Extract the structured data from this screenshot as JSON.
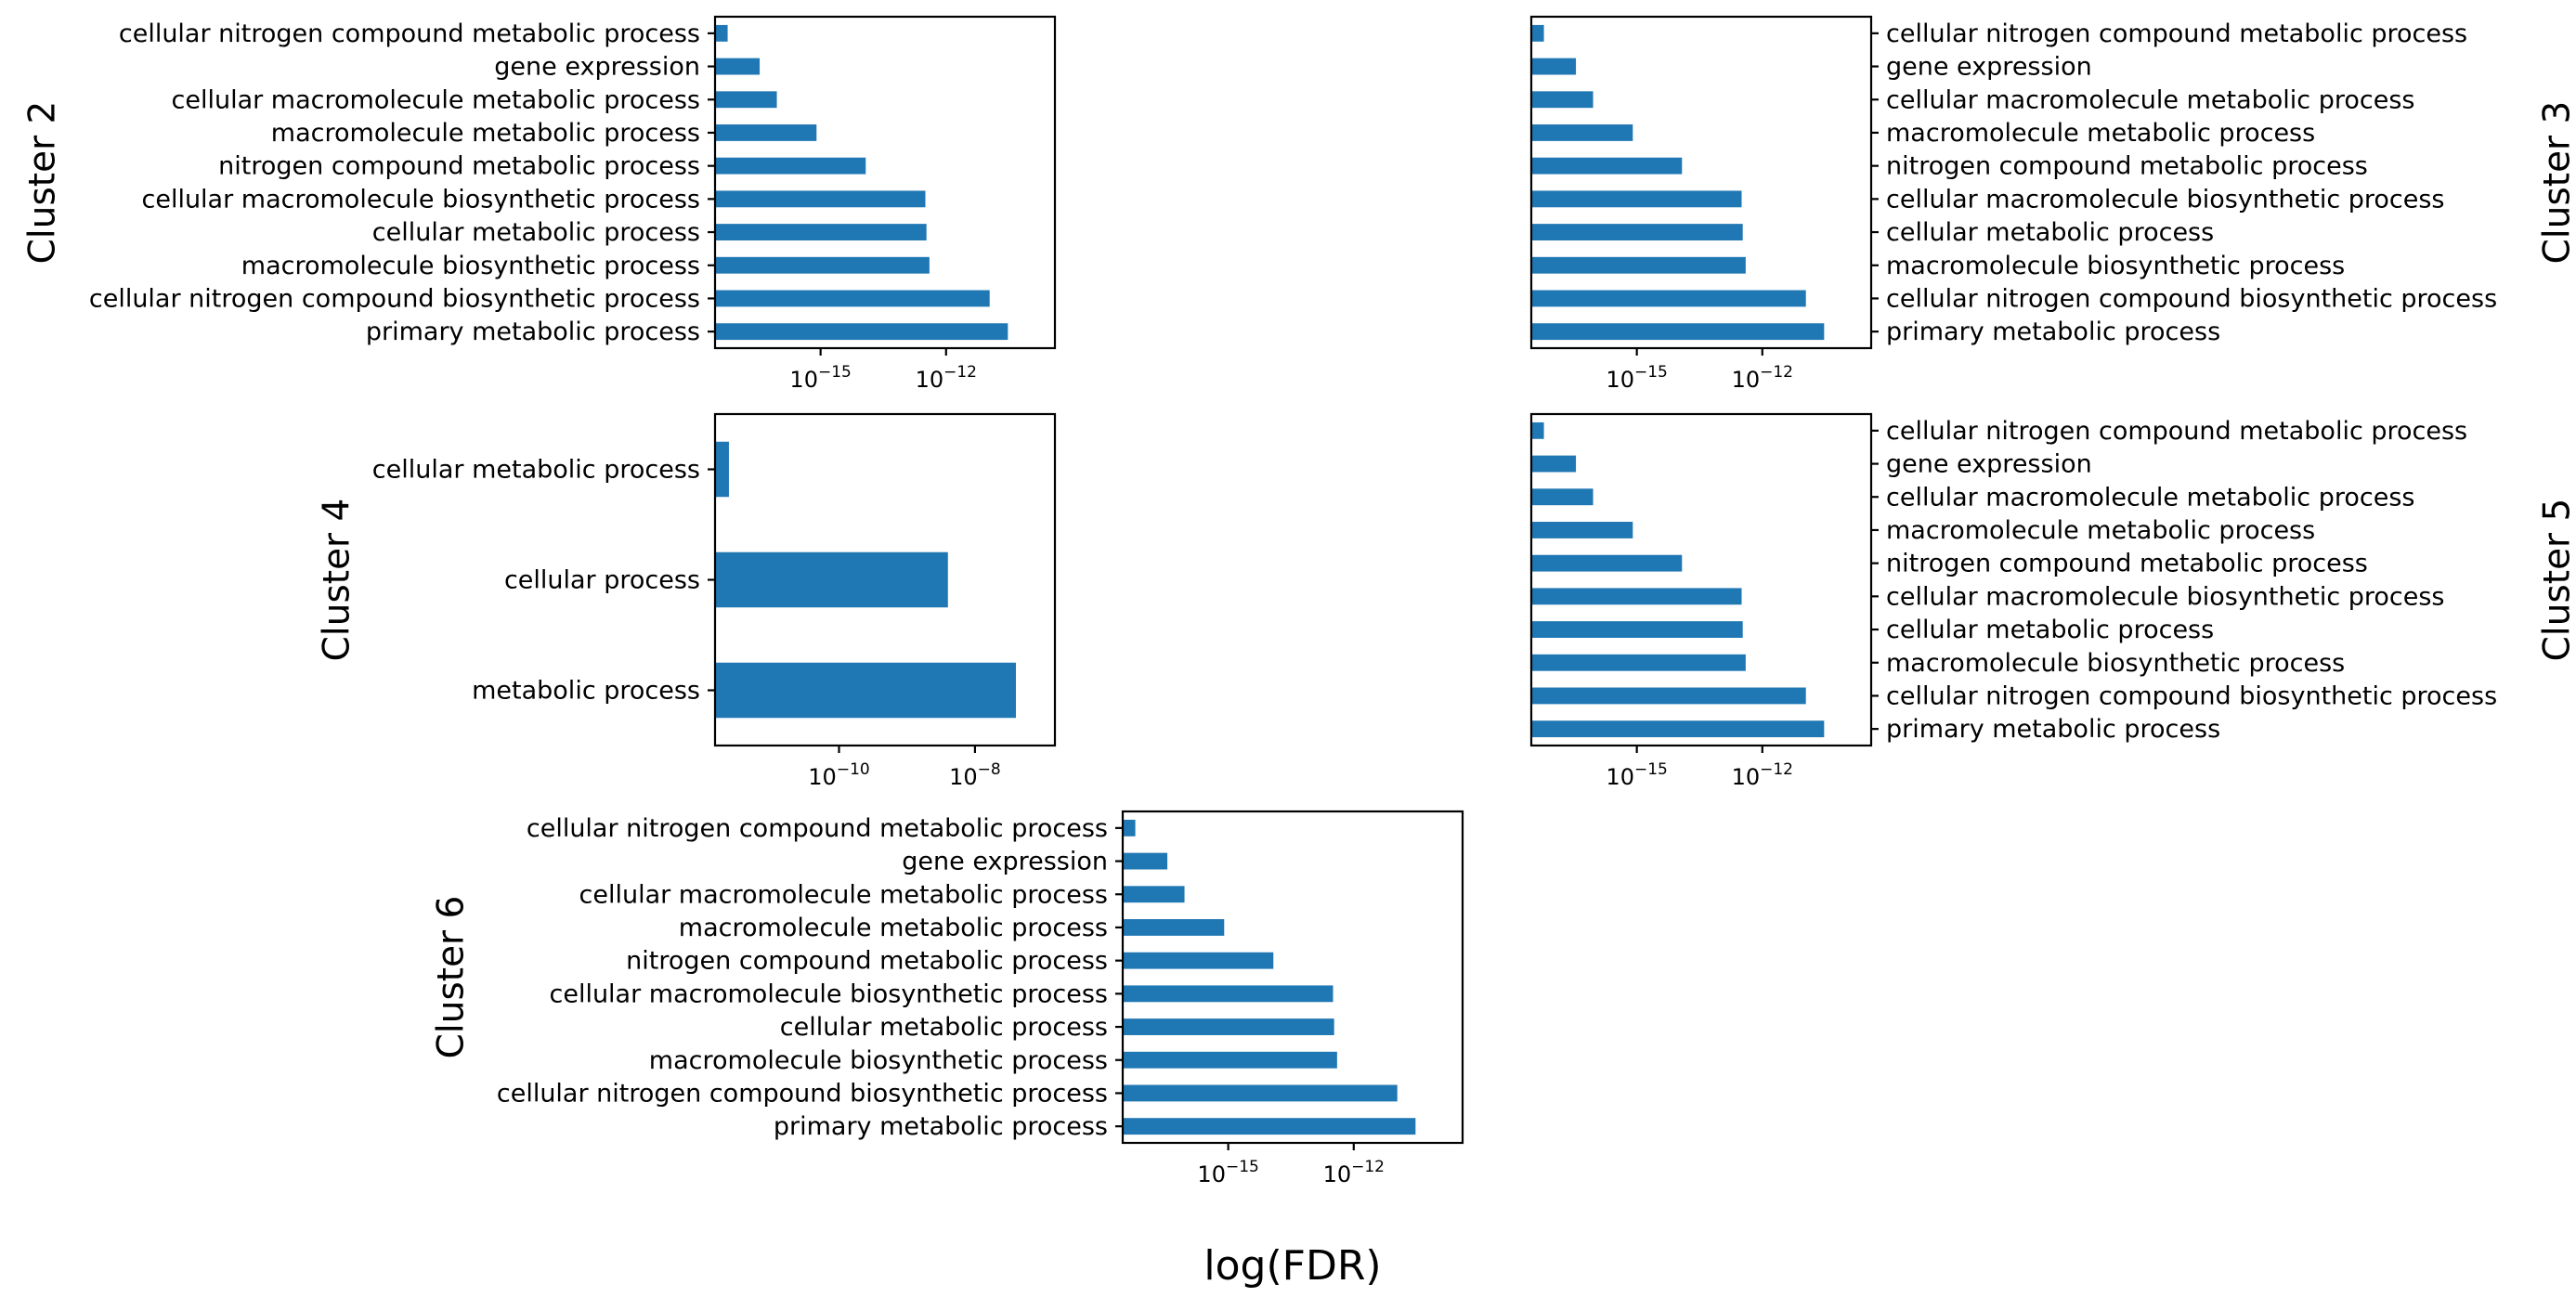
{
  "figure": {
    "xlabel": "log(FDR)",
    "bar_color": "#1f77b4"
  },
  "chart_data": [
    {
      "type": "bar",
      "orientation": "horizontal",
      "panel_label": "Cluster 2",
      "xscale": "log",
      "xlim": [
        3e-18,
        4e-10
      ],
      "xticks": [
        {
          "value": 1e-15,
          "base": "10",
          "exp": "−15"
        },
        {
          "value": 1e-12,
          "base": "10",
          "exp": "−12"
        }
      ],
      "ylabel_side": "left",
      "categories": [
        "cellular nitrogen compound metabolic process",
        "gene expression",
        "cellular macromolecule metabolic process",
        "macromolecule metabolic process",
        "nitrogen compound metabolic process",
        "cellular macromolecule biosynthetic process",
        "cellular metabolic process",
        "macromolecule biosynthetic process",
        "cellular nitrogen compound biosynthetic process",
        "primary metabolic process"
      ],
      "values": [
        6e-18,
        3.5e-17,
        9e-17,
        8e-16,
        1.2e-14,
        3.2e-13,
        3.4e-13,
        4e-13,
        1.1e-11,
        3e-11
      ]
    },
    {
      "type": "bar",
      "orientation": "horizontal",
      "panel_label": "Cluster 3",
      "xscale": "log",
      "xlim": [
        3e-18,
        4e-10
      ],
      "xticks": [
        {
          "value": 1e-15,
          "base": "10",
          "exp": "−15"
        },
        {
          "value": 1e-12,
          "base": "10",
          "exp": "−12"
        }
      ],
      "ylabel_side": "right",
      "categories": [
        "cellular nitrogen compound metabolic process",
        "gene expression",
        "cellular macromolecule metabolic process",
        "macromolecule metabolic process",
        "nitrogen compound metabolic process",
        "cellular macromolecule biosynthetic process",
        "cellular metabolic process",
        "macromolecule biosynthetic process",
        "cellular nitrogen compound biosynthetic process",
        "primary metabolic process"
      ],
      "values": [
        6e-18,
        3.5e-17,
        9e-17,
        8e-16,
        1.2e-14,
        3.2e-13,
        3.4e-13,
        4e-13,
        1.1e-11,
        3e-11
      ]
    },
    {
      "type": "bar",
      "orientation": "horizontal",
      "panel_label": "Cluster 4",
      "xscale": "log",
      "xlim": [
        1.5e-12,
        1.5e-07
      ],
      "xticks": [
        {
          "value": 1e-10,
          "base": "10",
          "exp": "−10"
        },
        {
          "value": 1e-08,
          "base": "10",
          "exp": "−8"
        }
      ],
      "ylabel_side": "left",
      "categories": [
        "cellular metabolic process",
        "cellular process",
        "metabolic process"
      ],
      "values": [
        2.4e-12,
        4e-09,
        4e-08
      ]
    },
    {
      "type": "bar",
      "orientation": "horizontal",
      "panel_label": "Cluster 5",
      "xscale": "log",
      "xlim": [
        3e-18,
        4e-10
      ],
      "xticks": [
        {
          "value": 1e-15,
          "base": "10",
          "exp": "−15"
        },
        {
          "value": 1e-12,
          "base": "10",
          "exp": "−12"
        }
      ],
      "ylabel_side": "right",
      "categories": [
        "cellular nitrogen compound metabolic process",
        "gene expression",
        "cellular macromolecule metabolic process",
        "macromolecule metabolic process",
        "nitrogen compound metabolic process",
        "cellular macromolecule biosynthetic process",
        "cellular metabolic process",
        "macromolecule biosynthetic process",
        "cellular nitrogen compound biosynthetic process",
        "primary metabolic process"
      ],
      "values": [
        6e-18,
        3.5e-17,
        9e-17,
        8e-16,
        1.2e-14,
        3.2e-13,
        3.4e-13,
        4e-13,
        1.1e-11,
        3e-11
      ]
    },
    {
      "type": "bar",
      "orientation": "horizontal",
      "panel_label": "Cluster 6",
      "xscale": "log",
      "xlim": [
        3e-18,
        4e-10
      ],
      "xticks": [
        {
          "value": 1e-15,
          "base": "10",
          "exp": "−15"
        },
        {
          "value": 1e-12,
          "base": "10",
          "exp": "−12"
        }
      ],
      "ylabel_side": "left",
      "categories": [
        "cellular nitrogen compound metabolic process",
        "gene expression",
        "cellular macromolecule metabolic process",
        "macromolecule metabolic process",
        "nitrogen compound metabolic process",
        "cellular macromolecule biosynthetic process",
        "cellular metabolic process",
        "macromolecule biosynthetic process",
        "cellular nitrogen compound biosynthetic process",
        "primary metabolic process"
      ],
      "values": [
        6e-18,
        3.5e-17,
        9e-17,
        8e-16,
        1.2e-14,
        3.2e-13,
        3.4e-13,
        4e-13,
        1.1e-11,
        3e-11
      ]
    }
  ]
}
